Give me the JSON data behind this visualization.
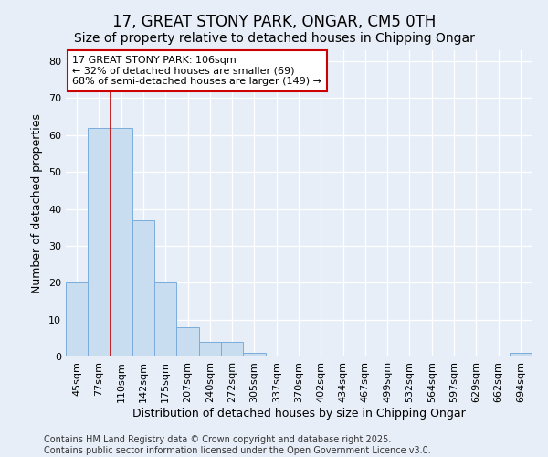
{
  "title1": "17, GREAT STONY PARK, ONGAR, CM5 0TH",
  "title2": "Size of property relative to detached houses in Chipping Ongar",
  "xlabel": "Distribution of detached houses by size in Chipping Ongar",
  "ylabel": "Number of detached properties",
  "categories": [
    "45sqm",
    "77sqm",
    "110sqm",
    "142sqm",
    "175sqm",
    "207sqm",
    "240sqm",
    "272sqm",
    "305sqm",
    "337sqm",
    "370sqm",
    "402sqm",
    "434sqm",
    "467sqm",
    "499sqm",
    "532sqm",
    "564sqm",
    "597sqm",
    "629sqm",
    "662sqm",
    "694sqm"
  ],
  "values": [
    20,
    62,
    62,
    37,
    20,
    8,
    4,
    4,
    1,
    0,
    0,
    0,
    0,
    0,
    0,
    0,
    0,
    0,
    0,
    0,
    1
  ],
  "bar_color": "#c9ddf0",
  "bar_edge_color": "#7aacdb",
  "vline_x": 1.5,
  "vline_color": "#c00000",
  "annotation_text": "17 GREAT STONY PARK: 106sqm\n← 32% of detached houses are smaller (69)\n68% of semi-detached houses are larger (149) →",
  "annotation_box_facecolor": "#ffffff",
  "annotation_box_edge": "#cc0000",
  "ylim": [
    0,
    83
  ],
  "yticks": [
    0,
    10,
    20,
    30,
    40,
    50,
    60,
    70,
    80
  ],
  "footer1": "Contains HM Land Registry data © Crown copyright and database right 2025.",
  "footer2": "Contains public sector information licensed under the Open Government Licence v3.0.",
  "bg_color": "#e8eef8",
  "plot_bg_color": "#e8eef8",
  "title1_fontsize": 12,
  "title2_fontsize": 10,
  "axis_label_fontsize": 9,
  "tick_fontsize": 8,
  "annotation_fontsize": 8,
  "footer_fontsize": 7
}
